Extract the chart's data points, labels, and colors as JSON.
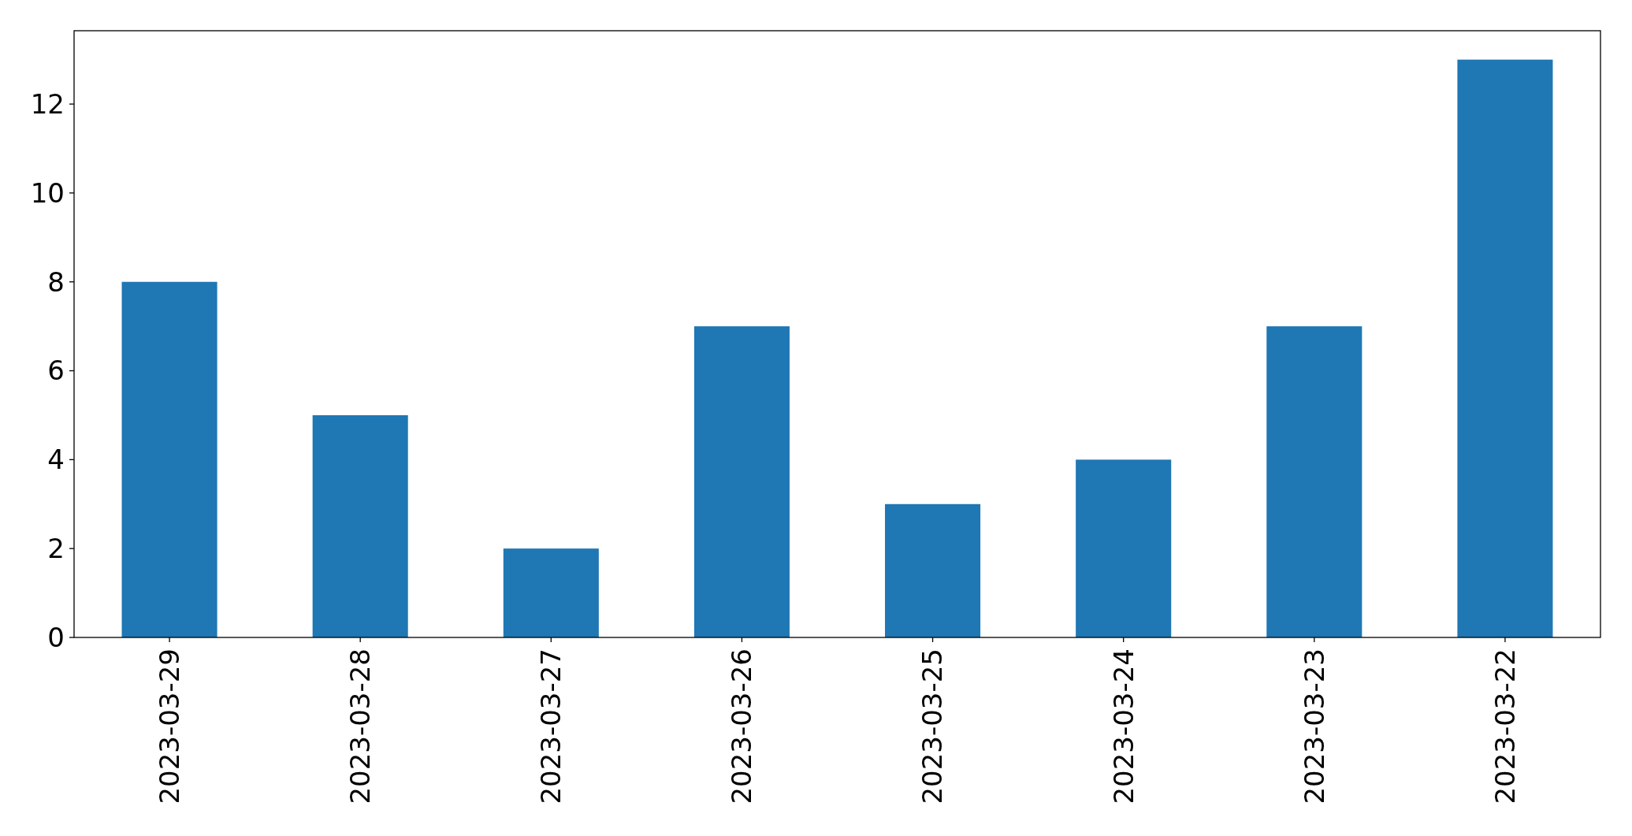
{
  "chart_data": {
    "type": "bar",
    "categories": [
      "2023-03-29",
      "2023-03-28",
      "2023-03-27",
      "2023-03-26",
      "2023-03-25",
      "2023-03-24",
      "2023-03-23",
      "2023-03-22"
    ],
    "values": [
      8,
      5,
      2,
      7,
      3,
      4,
      7,
      13
    ],
    "color": "#1f77b4",
    "ylim": [
      0,
      13.65
    ],
    "yticks": [
      0,
      2,
      4,
      6,
      8,
      10,
      12
    ]
  }
}
